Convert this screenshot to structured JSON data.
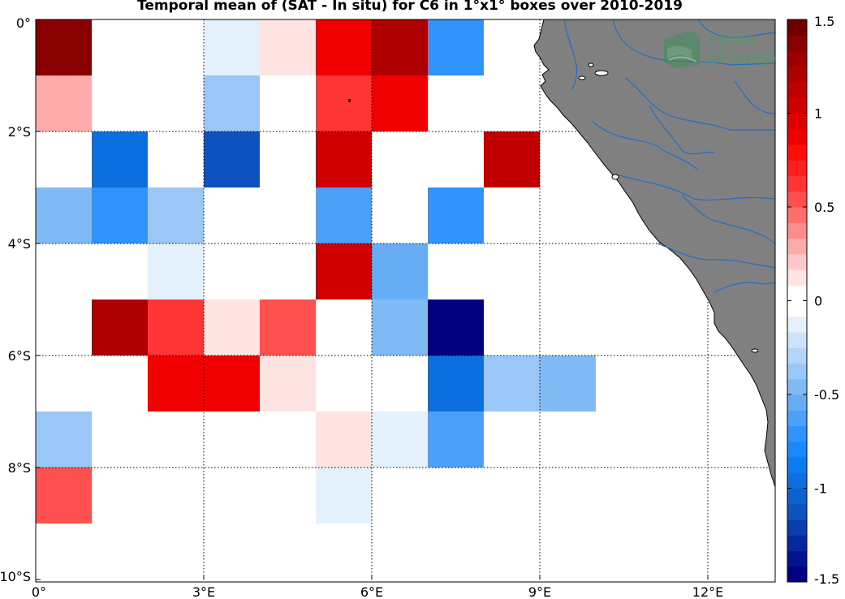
{
  "title": "Temporal mean of (SAT - In situ) for C6 in 1°x1° boxes over 2010-2019",
  "logo": {
    "line1": "smos",
    "line2": "pi-mep"
  },
  "map": {
    "lon_range": [
      0,
      13.2
    ],
    "lat_range": [
      -10,
      0
    ],
    "lon_ticks": [
      {
        "value": 0,
        "label": "0°"
      },
      {
        "value": 3,
        "label": "3°E"
      },
      {
        "value": 6,
        "label": "6°E"
      },
      {
        "value": 9,
        "label": "9°E"
      },
      {
        "value": 12,
        "label": "12°E"
      }
    ],
    "lat_ticks": [
      {
        "value": 0,
        "label": "0°"
      },
      {
        "value": -2,
        "label": "2°S"
      },
      {
        "value": -4,
        "label": "4°S"
      },
      {
        "value": -6,
        "label": "6°S"
      },
      {
        "value": -8,
        "label": "8°S"
      },
      {
        "value": -10,
        "label": "10°S"
      }
    ],
    "grid": true,
    "land_color": "#808080",
    "river_color": "#1f6fc8"
  },
  "colorbar": {
    "min": -1.5,
    "max": 1.5,
    "tick_labels": [
      {
        "value": 1.5,
        "label": "1.5"
      },
      {
        "value": 1,
        "label": "1"
      },
      {
        "value": 0.5,
        "label": "0.5"
      },
      {
        "value": 0,
        "label": "0"
      },
      {
        "value": -0.5,
        "label": "-0.5"
      },
      {
        "value": -1,
        "label": "-1"
      },
      {
        "value": -1.5,
        "label": "-1.5"
      }
    ],
    "colors": [
      "#000080",
      "#001390",
      "#0428a0",
      "#0a3eb0",
      "#0e52c0",
      "#0e62d0",
      "#0c6fe0",
      "#0a7ef0",
      "#1888fb",
      "#3093fb",
      "#4ca0f8",
      "#66adf6",
      "#80baf4",
      "#9ac7f6",
      "#b3d5f8",
      "#cde3fb",
      "#e5f0fd",
      "#ffffff",
      "#ffffff",
      "#ffe3e3",
      "#ffc8c8",
      "#ffaaaa",
      "#ff8c8c",
      "#ff6e6e",
      "#ff5050",
      "#ff3535",
      "#ff1f1f",
      "#ff0c0c",
      "#f00000",
      "#e00000",
      "#d00000",
      "#c00000",
      "#ae0000",
      "#9c0000",
      "#880000",
      "#700000"
    ]
  },
  "chart_data": {
    "type": "heatmap",
    "title": "Temporal mean of (SAT - In situ) for C6 in 1°x1° boxes over 2010-2019",
    "units": "",
    "cell_size_deg": 1,
    "cells": [
      {
        "lon": 0,
        "lat": 0,
        "value": 1.35
      },
      {
        "lon": 3,
        "lat": 0,
        "value": -0.12
      },
      {
        "lon": 4,
        "lat": 0,
        "value": 0.15
      },
      {
        "lon": 5,
        "lat": 0,
        "value": 0.85
      },
      {
        "lon": 6,
        "lat": 0,
        "value": 1.2
      },
      {
        "lon": 7,
        "lat": 0,
        "value": -0.7
      },
      {
        "lon": 0,
        "lat": -1,
        "value": 0.3
      },
      {
        "lon": 3,
        "lat": -1,
        "value": -0.35
      },
      {
        "lon": 5,
        "lat": -1,
        "value": 0.6
      },
      {
        "lon": 6,
        "lat": -1,
        "value": 0.85
      },
      {
        "lon": 1,
        "lat": -2,
        "value": -0.95
      },
      {
        "lon": 3,
        "lat": -2,
        "value": -1.1
      },
      {
        "lon": 5,
        "lat": -2,
        "value": 1.0
      },
      {
        "lon": 8,
        "lat": -2,
        "value": 1.15
      },
      {
        "lon": 0,
        "lat": -3,
        "value": -0.5
      },
      {
        "lon": 1,
        "lat": -3,
        "value": -0.75
      },
      {
        "lon": 2,
        "lat": -3,
        "value": -0.35
      },
      {
        "lon": 5,
        "lat": -3,
        "value": -0.6
      },
      {
        "lon": 7,
        "lat": -3,
        "value": -0.75
      },
      {
        "lon": 2,
        "lat": -4,
        "value": -0.12
      },
      {
        "lon": 5,
        "lat": -4,
        "value": 1.0
      },
      {
        "lon": 6,
        "lat": -4,
        "value": -0.55
      },
      {
        "lon": 1,
        "lat": -5,
        "value": 1.2
      },
      {
        "lon": 2,
        "lat": -5,
        "value": 0.65
      },
      {
        "lon": 3,
        "lat": -5,
        "value": 0.15
      },
      {
        "lon": 4,
        "lat": -5,
        "value": 0.5
      },
      {
        "lon": 6,
        "lat": -5,
        "value": -0.45
      },
      {
        "lon": 7,
        "lat": -5,
        "value": -1.5
      },
      {
        "lon": 2,
        "lat": -6,
        "value": 0.85
      },
      {
        "lon": 3,
        "lat": -6,
        "value": 0.85
      },
      {
        "lon": 4,
        "lat": -6,
        "value": 0.15
      },
      {
        "lon": 7,
        "lat": -6,
        "value": -0.95
      },
      {
        "lon": 8,
        "lat": -6,
        "value": -0.35
      },
      {
        "lon": 9,
        "lat": -6,
        "value": -0.45
      },
      {
        "lon": 0,
        "lat": -7,
        "value": -0.35
      },
      {
        "lon": 5,
        "lat": -7,
        "value": 0.15
      },
      {
        "lon": 6,
        "lat": -7,
        "value": -0.12
      },
      {
        "lon": 7,
        "lat": -7,
        "value": -0.6
      },
      {
        "lon": 0,
        "lat": -8,
        "value": 0.5
      },
      {
        "lon": 5,
        "lat": -8,
        "value": -0.12
      }
    ]
  }
}
